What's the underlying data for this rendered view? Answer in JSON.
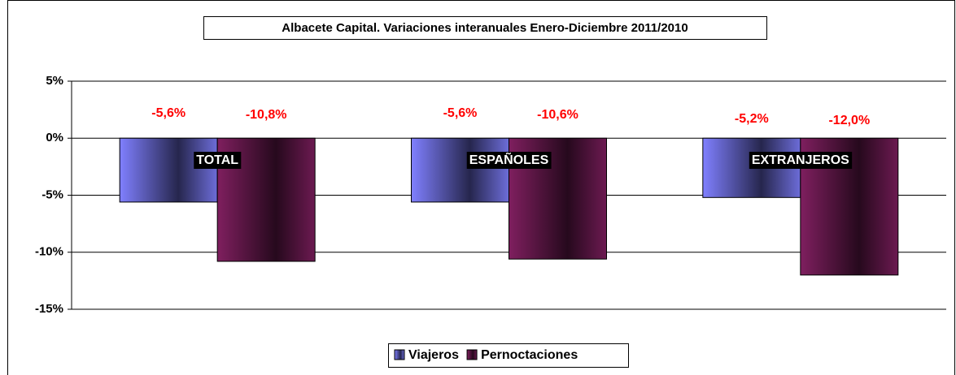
{
  "chart_data": {
    "type": "bar",
    "title": "Albacete Capital. Variaciones interanuales Enero-Diciembre 2011/2010",
    "categories": [
      "TOTAL",
      "ESPAÑOLES",
      "EXTRANJEROS"
    ],
    "series": [
      {
        "name": "Viajeros",
        "color": "#8080ff",
        "values": [
          -5.6,
          -5.6,
          -5.2
        ],
        "value_labels": [
          "-5,6%",
          "-5,6%",
          "-5,2%"
        ]
      },
      {
        "name": "Pernoctaciones",
        "color": "#7f1f5f",
        "values": [
          -10.8,
          -10.6,
          -12.0
        ],
        "value_labels": [
          "-10,8%",
          "-10,6%",
          "-12,0%"
        ]
      }
    ],
    "ylim": [
      -15,
      5
    ],
    "yticks": [
      {
        "value": 5,
        "label": "5%"
      },
      {
        "value": 0,
        "label": "0%"
      },
      {
        "value": -5,
        "label": "-5%"
      },
      {
        "value": -10,
        "label": "-10%"
      },
      {
        "value": -15,
        "label": "-15%"
      }
    ],
    "grid": true,
    "legend": "bottom"
  }
}
